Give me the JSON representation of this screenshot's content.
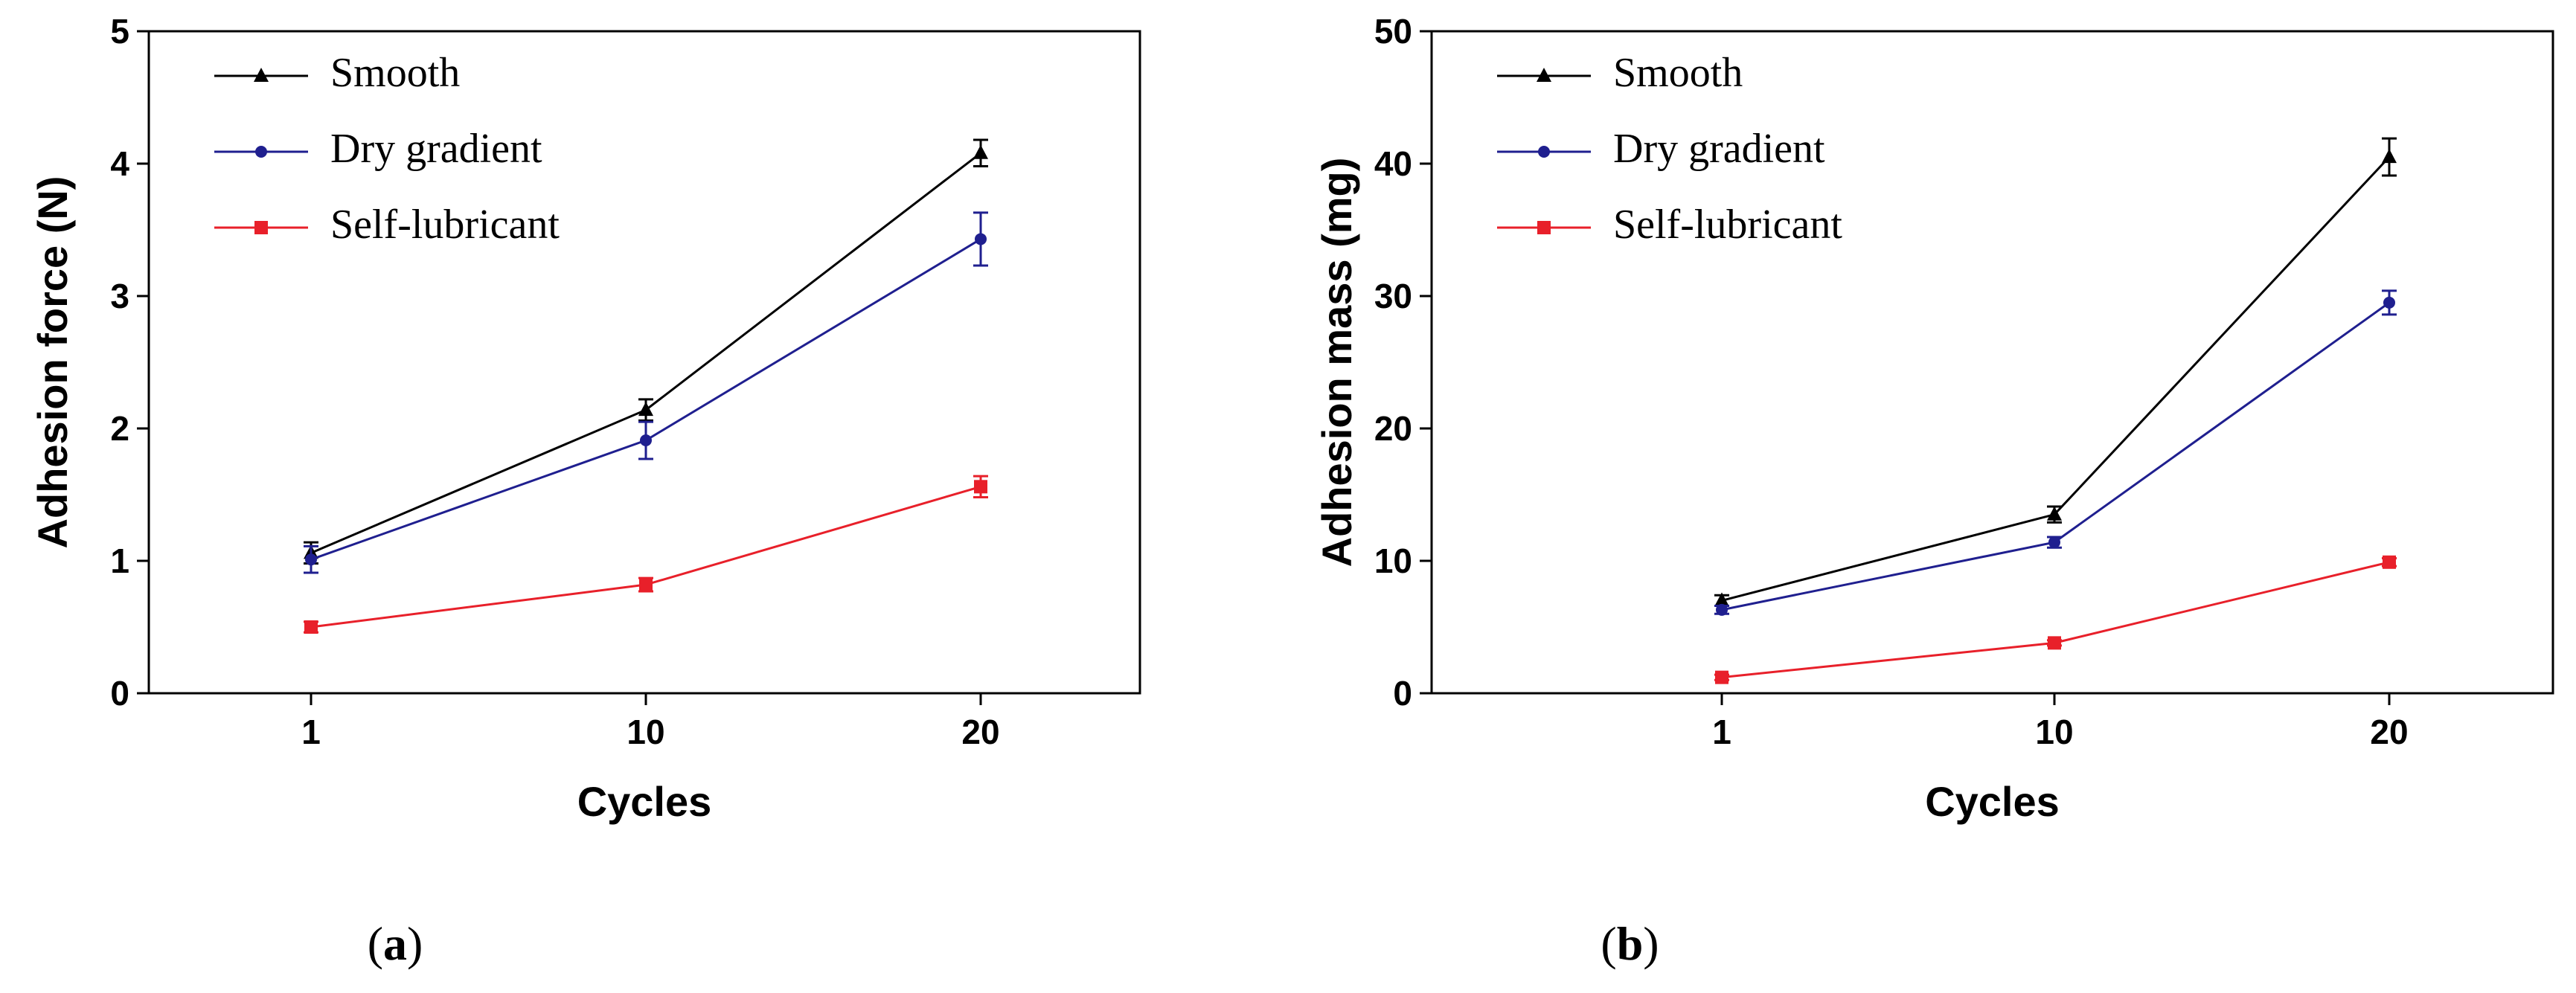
{
  "chart_data": [
    {
      "type": "line",
      "caption_letter": "a",
      "title": "",
      "xlabel": "Cycles",
      "ylabel": "Adhesion force (N)",
      "categories": [
        "1",
        "10",
        "20"
      ],
      "ylim": [
        0,
        5
      ],
      "yticks": [
        0,
        1,
        2,
        3,
        4,
        5
      ],
      "legend_position": "top-left",
      "grid": false,
      "series": [
        {
          "name": "Smooth",
          "color": "#000000",
          "marker": "triangle",
          "values": [
            1.06,
            2.14,
            4.08
          ],
          "errors": [
            0.08,
            0.08,
            0.1
          ]
        },
        {
          "name": "Dry gradient",
          "color": "#1f1f8f",
          "marker": "circle",
          "values": [
            1.01,
            1.91,
            3.43
          ],
          "errors": [
            0.1,
            0.14,
            0.2
          ]
        },
        {
          "name": "Self-lubricant",
          "color": "#e8202a",
          "marker": "square",
          "values": [
            0.5,
            0.82,
            1.56
          ],
          "errors": [
            0.04,
            0.05,
            0.08
          ]
        }
      ]
    },
    {
      "type": "line",
      "caption_letter": "b",
      "title": "",
      "xlabel": "Cycles",
      "ylabel": "Adhesion mass (mg)",
      "categories": [
        "1",
        "10",
        "20"
      ],
      "ylim": [
        0,
        50
      ],
      "yticks": [
        0,
        10,
        20,
        30,
        40,
        50
      ],
      "legend_position": "top-left",
      "grid": false,
      "series": [
        {
          "name": "Smooth",
          "color": "#000000",
          "marker": "triangle",
          "values": [
            7.0,
            13.5,
            40.5
          ],
          "errors": [
            0.4,
            0.6,
            1.4
          ]
        },
        {
          "name": "Dry gradient",
          "color": "#1f1f8f",
          "marker": "circle",
          "values": [
            6.3,
            11.4,
            29.5
          ],
          "errors": [
            0.3,
            0.4,
            0.9
          ]
        },
        {
          "name": "Self-lubricant",
          "color": "#e8202a",
          "marker": "square",
          "values": [
            1.2,
            3.8,
            9.9
          ],
          "errors": [
            0.2,
            0.2,
            0.3
          ]
        }
      ]
    }
  ]
}
